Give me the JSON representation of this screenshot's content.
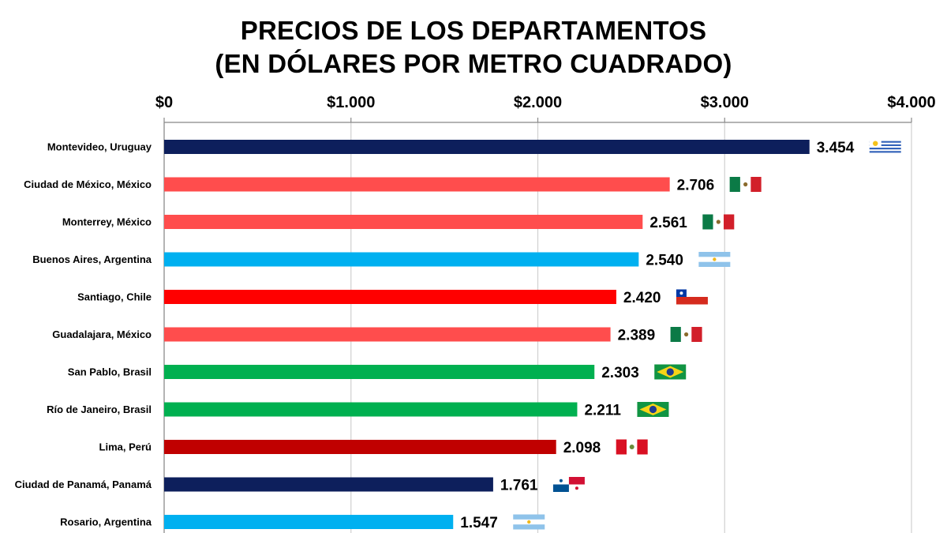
{
  "chart_data": {
    "type": "bar",
    "orientation": "horizontal",
    "title_lines": [
      "PRECIOS DE LOS DEPARTAMENTOS",
      "(EN DÓLARES POR METRO CUADRADO)"
    ],
    "xlim": [
      0,
      4000
    ],
    "x_ticks": [
      {
        "value": 0,
        "label": "$0"
      },
      {
        "value": 1000,
        "label": "$1.000"
      },
      {
        "value": 2000,
        "label": "$2.000"
      },
      {
        "value": 3000,
        "label": "$3.000"
      },
      {
        "value": 4000,
        "label": "$4.000"
      }
    ],
    "x_axis_position": "top",
    "grid": true,
    "bars": [
      {
        "category": "Montevideo, Uruguay",
        "value": 3454,
        "label": "3.454",
        "color": "#0d1f5c",
        "flag": "uruguay-flag-icon"
      },
      {
        "category": "Ciudad de México, México",
        "value": 2706,
        "label": "2.706",
        "color": "#ff4d4d",
        "flag": "mexico-flag-icon"
      },
      {
        "category": "Monterrey, México",
        "value": 2561,
        "label": "2.561",
        "color": "#ff4d4d",
        "flag": "mexico-flag-icon"
      },
      {
        "category": "Buenos Aires, Argentina",
        "value": 2540,
        "label": "2.540",
        "color": "#00b0f0",
        "flag": "argentina-flag-icon"
      },
      {
        "category": "Santiago, Chile",
        "value": 2420,
        "label": "2.420",
        "color": "#ff0000",
        "flag": "chile-flag-icon"
      },
      {
        "category": "Guadalajara, México",
        "value": 2389,
        "label": "2.389",
        "color": "#ff4d4d",
        "flag": "mexico-flag-icon"
      },
      {
        "category": "San Pablo, Brasil",
        "value": 2303,
        "label": "2.303",
        "color": "#00b050",
        "flag": "brazil-flag-icon"
      },
      {
        "category": "Río de Janeiro, Brasil",
        "value": 2211,
        "label": "2.211",
        "color": "#00b050",
        "flag": "brazil-flag-icon"
      },
      {
        "category": "Lima, Perú",
        "value": 2098,
        "label": "2.098",
        "color": "#c00000",
        "flag": "peru-flag-icon"
      },
      {
        "category": "Ciudad de Panamá, Panamá",
        "value": 1761,
        "label": "1.761",
        "color": "#0d1f5c",
        "flag": "panama-flag-icon"
      },
      {
        "category": "Rosario, Argentina",
        "value": 1547,
        "label": "1.547",
        "color": "#00b0f0",
        "flag": "argentina-flag-icon"
      }
    ]
  }
}
